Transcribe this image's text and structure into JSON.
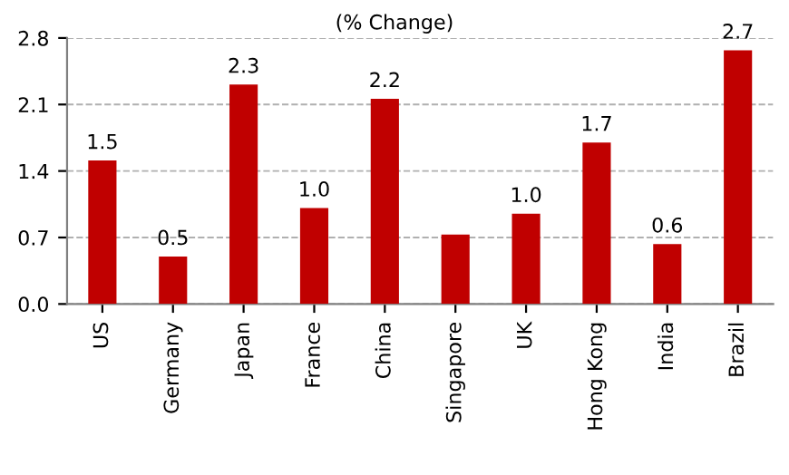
{
  "chart_data": {
    "type": "bar",
    "title": "(% Change)",
    "categories": [
      "US",
      "Germany",
      "Japan",
      "France",
      "China",
      "Singapore",
      "UK",
      "Hong Kong",
      "India",
      "Brazil"
    ],
    "values": [
      1.51,
      0.5,
      2.31,
      1.01,
      2.16,
      0.73,
      0.95,
      1.7,
      0.63,
      2.67
    ],
    "value_labels": [
      "1.5",
      "0.5",
      "2.3",
      "1.0",
      "2.2",
      null,
      "1.0",
      "1.7",
      "0.6",
      "2.7"
    ],
    "color": "#c00000",
    "ylim": [
      0,
      2.8
    ],
    "yticks": [
      {
        "value": 0,
        "label": "0.0"
      },
      0.7,
      1.4,
      2.1,
      2.8
    ],
    "grid": "y"
  }
}
